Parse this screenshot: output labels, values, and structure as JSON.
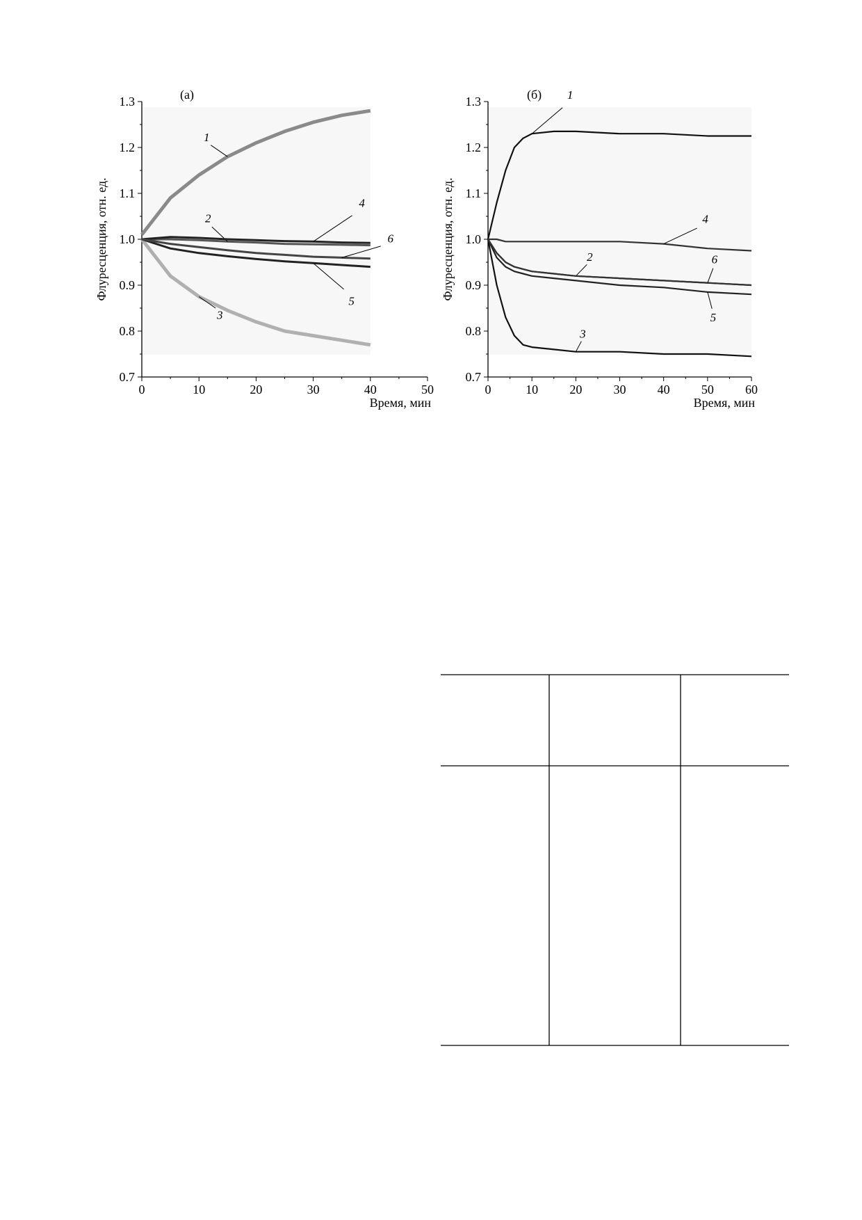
{
  "chart_data": [
    {
      "type": "line",
      "title": "(а)",
      "x_label": "Время, мин",
      "y_label": "Флуресценция, отн. ед.",
      "x": [
        0,
        5,
        10,
        15,
        20,
        25,
        30,
        35,
        40
      ],
      "xlim": [
        0,
        50
      ],
      "xticks": [
        0,
        10,
        20,
        30,
        40,
        50
      ],
      "ylim": [
        0.7,
        1.3
      ],
      "yticks": [
        0.7,
        0.8,
        0.9,
        {
          "value": 1,
          "label": "1.0"
        },
        1.1,
        1.2,
        1.3
      ],
      "grid": false,
      "series": [
        {
          "name": "1",
          "color": "#8a8a8a",
          "values": [
            1.01,
            1.09,
            1.14,
            1.18,
            1.21,
            1.235,
            1.255,
            1.27,
            1.28
          ]
        },
        {
          "name": "2",
          "color": "#555555",
          "values": [
            1.0,
            1.0,
            0.998,
            0.995,
            0.993,
            0.99,
            0.989,
            0.988,
            0.987
          ]
        },
        {
          "name": "3",
          "color": "#b0b0b0",
          "values": [
            1.0,
            0.92,
            0.875,
            0.845,
            0.82,
            0.8,
            0.79,
            0.78,
            0.77
          ]
        },
        {
          "name": "4",
          "color": "#222222",
          "values": [
            1.0,
            1.005,
            1.003,
            1.0,
            0.998,
            0.996,
            0.995,
            0.993,
            0.992
          ]
        },
        {
          "name": "5",
          "color": "#222222",
          "values": [
            1.0,
            0.98,
            0.97,
            0.963,
            0.957,
            0.952,
            0.948,
            0.944,
            0.94
          ]
        },
        {
          "name": "6",
          "color": "#444444",
          "values": [
            1.0,
            0.99,
            0.983,
            0.976,
            0.97,
            0.966,
            0.962,
            0.96,
            0.958
          ]
        }
      ]
    },
    {
      "type": "line",
      "title": "(б)",
      "x_label": "Время, мин",
      "y_label": "Флуресценция, отн. ед.",
      "x": [
        0,
        2,
        4,
        6,
        8,
        10,
        15,
        20,
        30,
        40,
        50,
        60
      ],
      "xlim": [
        0,
        60
      ],
      "xticks": [
        0,
        10,
        20,
        30,
        40,
        50,
        60
      ],
      "ylim": [
        0.7,
        1.3
      ],
      "yticks": [
        0.7,
        0.8,
        0.9,
        {
          "value": 1,
          "label": "1.0"
        },
        1.1,
        1.2,
        1.3
      ],
      "grid": false,
      "series": [
        {
          "name": "1",
          "color": "#111111",
          "values": [
            1.0,
            1.08,
            1.15,
            1.2,
            1.22,
            1.23,
            1.235,
            1.235,
            1.23,
            1.23,
            1.225,
            1.225
          ]
        },
        {
          "name": "2",
          "color": "#222222",
          "values": [
            1.0,
            0.97,
            0.95,
            0.94,
            0.935,
            0.93,
            0.925,
            0.92,
            0.915,
            0.91,
            0.905,
            0.9
          ]
        },
        {
          "name": "3",
          "color": "#111111",
          "values": [
            1.0,
            0.9,
            0.83,
            0.79,
            0.77,
            0.765,
            0.76,
            0.755,
            0.755,
            0.75,
            0.75,
            0.745
          ]
        },
        {
          "name": "4",
          "color": "#333333",
          "values": [
            1.0,
            1.0,
            0.995,
            0.995,
            0.995,
            0.995,
            0.995,
            0.995,
            0.995,
            0.99,
            0.98,
            0.975
          ]
        },
        {
          "name": "5",
          "color": "#222222",
          "values": [
            1.0,
            0.96,
            0.94,
            0.93,
            0.925,
            0.92,
            0.915,
            0.91,
            0.9,
            0.895,
            0.885,
            0.88
          ]
        },
        {
          "name": "6",
          "color": "#333333",
          "values": [
            1.0,
            0.97,
            0.95,
            0.94,
            0.935,
            0.93,
            0.925,
            0.92,
            0.915,
            0.91,
            0.905,
            0.9
          ]
        }
      ]
    }
  ]
}
